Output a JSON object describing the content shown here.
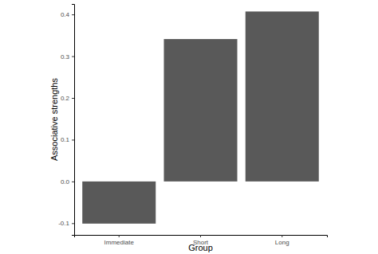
{
  "chart_data": {
    "type": "bar",
    "x_label": "Group",
    "y_label": "Associative strengths",
    "categories": [
      "Immediate",
      "Short",
      "Long"
    ],
    "values": [
      -0.101,
      0.341,
      0.407
    ],
    "color": "#595959",
    "ylim": [
      -0.128,
      0.425
    ],
    "yticks": [
      -0.1,
      {
        "value": 0,
        "label": "0.0"
      },
      0.1,
      0.2,
      0.3,
      0.4
    ],
    "grid": false
  }
}
